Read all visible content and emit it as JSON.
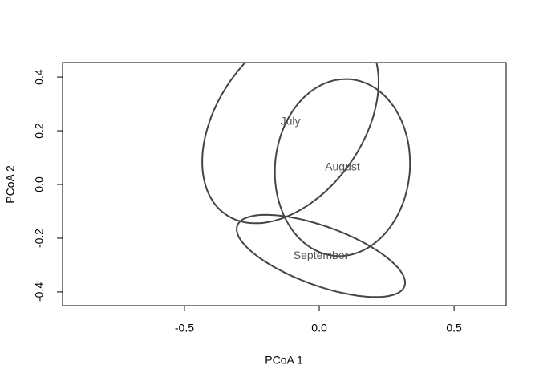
{
  "chart_data": {
    "type": "ellipse",
    "x_label": "PCoA 1",
    "y_label": "PCoA 2",
    "xlim": [
      -0.952,
      0.693
    ],
    "ylim": [
      -0.451,
      0.454
    ],
    "xticks": [
      -0.5,
      {
        "value": 0,
        "label": "0.0"
      },
      0.5
    ],
    "yticks": [
      -0.4,
      -0.2,
      {
        "value": 0,
        "label": "0.0"
      },
      0.2,
      0.4
    ],
    "color": "#444444",
    "ellipses": [
      {
        "label": "July",
        "x": -0.107,
        "y": 0.233,
        "a": 0.42,
        "b": 0.27,
        "angle": 55
      },
      {
        "label": "August",
        "x": 0.086,
        "y": 0.063,
        "a": 0.33,
        "b": 0.25,
        "angle": 85
      },
      {
        "label": "September",
        "x": 0.006,
        "y": -0.266,
        "a": 0.33,
        "b": 0.11,
        "angle": -20
      }
    ]
  }
}
